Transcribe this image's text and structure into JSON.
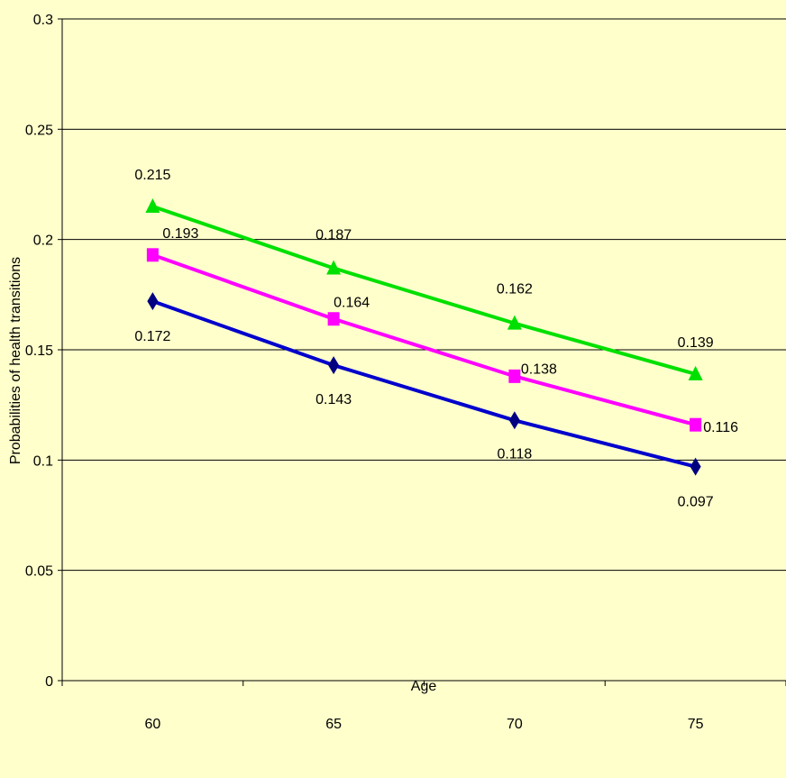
{
  "chart_data": {
    "type": "line",
    "title": "",
    "xlabel": "Age",
    "ylabel": "Probabilities of health transitions",
    "categories": [
      "60",
      "65",
      "70",
      "75"
    ],
    "ylim": [
      0,
      0.3
    ],
    "yticks": [
      "0",
      "0.05",
      "0.1",
      "0.15",
      "0.2",
      "0.25",
      "0.3"
    ],
    "grid": "horizontal",
    "legend": "none",
    "series": [
      {
        "color": "#00E000",
        "marker": "triangle",
        "values": [
          0.215,
          0.187,
          0.162,
          0.139
        ],
        "labels": [
          "0.215",
          "0.187",
          "0.162",
          "0.139"
        ]
      },
      {
        "color": "#FF00FF",
        "marker": "square",
        "values": [
          0.193,
          0.164,
          0.138,
          0.116
        ],
        "labels": [
          "0.193",
          "0.164",
          "0.138",
          "0.116"
        ]
      },
      {
        "color": "#0000CC",
        "marker_color": "#000080",
        "marker": "diamond",
        "values": [
          0.172,
          0.143,
          0.118,
          0.097
        ],
        "labels": [
          "0.172",
          "0.143",
          "0.118",
          "0.097"
        ]
      }
    ]
  }
}
